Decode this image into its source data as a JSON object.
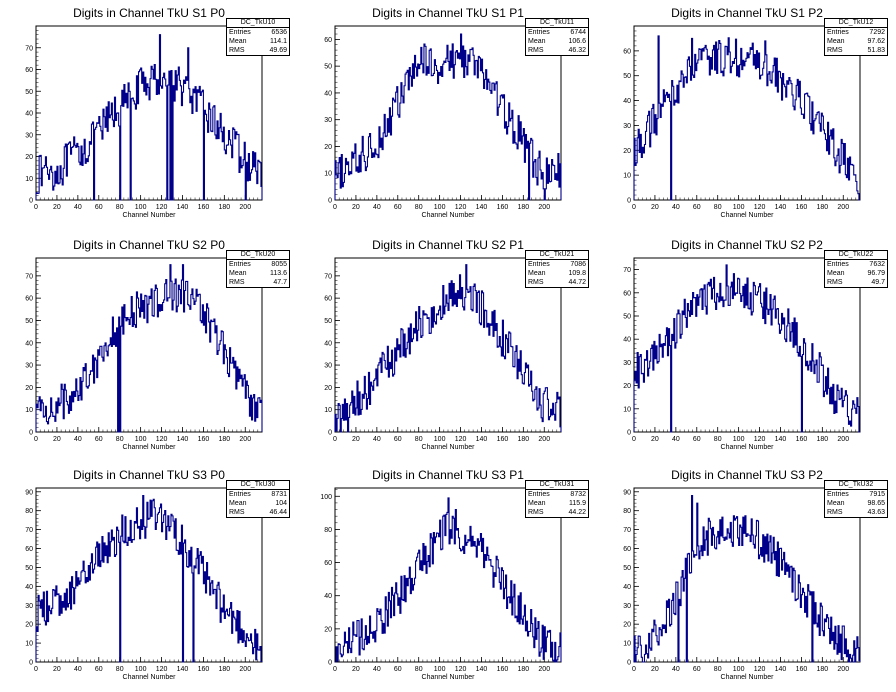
{
  "chart_data": [
    {
      "type": "histogram",
      "name": "DC_TkU10",
      "title": "Digits in Channel TkU S1 P0",
      "xlabel": "Channel Number",
      "xlim": [
        0,
        216
      ],
      "ylim": [
        0,
        80
      ],
      "yticks": [
        0,
        10,
        20,
        30,
        40,
        50,
        60,
        70
      ],
      "xticks": [
        0,
        20,
        40,
        60,
        80,
        100,
        120,
        140,
        160,
        180,
        200
      ],
      "stats": {
        "entries": "6536",
        "mean": "114.1",
        "rms": "49.69"
      },
      "profile": [
        [
          0,
          10
        ],
        [
          10,
          15
        ],
        [
          20,
          12
        ],
        [
          30,
          18
        ],
        [
          40,
          22
        ],
        [
          50,
          25
        ],
        [
          60,
          30
        ],
        [
          70,
          38
        ],
        [
          80,
          42
        ],
        [
          90,
          48
        ],
        [
          100,
          52
        ],
        [
          110,
          55
        ],
        [
          120,
          56
        ],
        [
          130,
          55
        ],
        [
          140,
          52
        ],
        [
          150,
          47
        ],
        [
          160,
          42
        ],
        [
          170,
          36
        ],
        [
          180,
          30
        ],
        [
          190,
          24
        ],
        [
          200,
          18
        ],
        [
          210,
          14
        ],
        [
          216,
          12
        ]
      ],
      "spikes": [
        [
          118,
          76
        ],
        [
          125,
          60
        ],
        [
          145,
          70
        ]
      ],
      "dips": [
        55,
        80,
        90,
        125,
        128,
        130,
        160,
        200
      ]
    },
    {
      "type": "histogram",
      "name": "DC_TkU11",
      "title": "Digits in Channel TkU S1 P1",
      "xlabel": "Channel Number",
      "xlim": [
        0,
        216
      ],
      "ylim": [
        0,
        65
      ],
      "yticks": [
        0,
        10,
        20,
        30,
        40,
        50,
        60
      ],
      "xticks": [
        0,
        20,
        40,
        60,
        80,
        100,
        120,
        140,
        160,
        180,
        200
      ],
      "stats": {
        "entries": "6744",
        "mean": "106.6",
        "rms": "46.32"
      },
      "profile": [
        [
          0,
          8
        ],
        [
          10,
          12
        ],
        [
          20,
          14
        ],
        [
          30,
          18
        ],
        [
          40,
          22
        ],
        [
          50,
          28
        ],
        [
          60,
          36
        ],
        [
          70,
          44
        ],
        [
          80,
          50
        ],
        [
          90,
          52
        ],
        [
          100,
          50
        ],
        [
          110,
          52
        ],
        [
          120,
          53
        ],
        [
          130,
          52
        ],
        [
          140,
          48
        ],
        [
          150,
          42
        ],
        [
          160,
          34
        ],
        [
          170,
          28
        ],
        [
          180,
          22
        ],
        [
          190,
          14
        ],
        [
          200,
          10
        ],
        [
          210,
          10
        ],
        [
          216,
          12
        ]
      ],
      "spikes": [
        [
          120,
          62
        ],
        [
          82,
          57
        ]
      ],
      "dips": [
        185,
        200
      ]
    },
    {
      "type": "histogram",
      "name": "DC_TkU12",
      "title": "Digits in Channel TkU S1 P2",
      "xlabel": "Channel Number",
      "xlim": [
        0,
        216
      ],
      "ylim": [
        0,
        70
      ],
      "yticks": [
        0,
        10,
        20,
        30,
        40,
        50,
        60
      ],
      "xticks": [
        0,
        20,
        40,
        60,
        80,
        100,
        120,
        140,
        160,
        180,
        200
      ],
      "stats": {
        "entries": "7292",
        "mean": "97.62",
        "rms": "51.83"
      },
      "profile": [
        [
          0,
          20
        ],
        [
          10,
          25
        ],
        [
          20,
          32
        ],
        [
          30,
          38
        ],
        [
          40,
          45
        ],
        [
          50,
          50
        ],
        [
          60,
          54
        ],
        [
          70,
          56
        ],
        [
          80,
          57
        ],
        [
          90,
          58
        ],
        [
          100,
          57
        ],
        [
          110,
          56
        ],
        [
          120,
          55
        ],
        [
          130,
          52
        ],
        [
          140,
          48
        ],
        [
          150,
          44
        ],
        [
          160,
          40
        ],
        [
          170,
          34
        ],
        [
          180,
          28
        ],
        [
          190,
          22
        ],
        [
          200,
          16
        ],
        [
          210,
          10
        ],
        [
          216,
          5
        ]
      ],
      "spikes": [
        [
          23,
          66
        ],
        [
          125,
          64
        ],
        [
          55,
          65
        ]
      ],
      "dips": [
        35,
        215
      ]
    },
    {
      "type": "histogram",
      "name": "DC_TkU20",
      "title": "Digits in Channel TkU S2 P0",
      "xlabel": "Channel Number",
      "xlim": [
        0,
        216
      ],
      "ylim": [
        0,
        78
      ],
      "yticks": [
        0,
        10,
        20,
        30,
        40,
        50,
        60,
        70
      ],
      "xticks": [
        0,
        20,
        40,
        60,
        80,
        100,
        120,
        140,
        160,
        180,
        200
      ],
      "stats": {
        "entries": "8055",
        "mean": "113.6",
        "rms": "47.7"
      },
      "profile": [
        [
          0,
          10
        ],
        [
          10,
          10
        ],
        [
          20,
          12
        ],
        [
          30,
          15
        ],
        [
          40,
          20
        ],
        [
          50,
          26
        ],
        [
          60,
          34
        ],
        [
          70,
          42
        ],
        [
          80,
          48
        ],
        [
          90,
          52
        ],
        [
          100,
          56
        ],
        [
          110,
          58
        ],
        [
          120,
          60
        ],
        [
          130,
          62
        ],
        [
          140,
          62
        ],
        [
          150,
          58
        ],
        [
          160,
          54
        ],
        [
          170,
          46
        ],
        [
          180,
          36
        ],
        [
          190,
          28
        ],
        [
          200,
          18
        ],
        [
          210,
          10
        ],
        [
          216,
          8
        ]
      ],
      "spikes": [
        [
          128,
          75
        ],
        [
          140,
          75
        ]
      ],
      "dips": [
        78,
        80
      ]
    },
    {
      "type": "histogram",
      "name": "DC_TkU21",
      "title": "Digits in Channel TkU S2 P1",
      "xlabel": "Channel Number",
      "xlim": [
        0,
        216
      ],
      "ylim": [
        0,
        78
      ],
      "yticks": [
        0,
        10,
        20,
        30,
        40,
        50,
        60,
        70
      ],
      "xticks": [
        0,
        20,
        40,
        60,
        80,
        100,
        120,
        140,
        160,
        180,
        200
      ],
      "stats": {
        "entries": "7086",
        "mean": "109.8",
        "rms": "44.72"
      },
      "profile": [
        [
          0,
          8
        ],
        [
          10,
          10
        ],
        [
          20,
          14
        ],
        [
          30,
          18
        ],
        [
          40,
          24
        ],
        [
          50,
          30
        ],
        [
          60,
          36
        ],
        [
          70,
          42
        ],
        [
          80,
          48
        ],
        [
          90,
          52
        ],
        [
          100,
          56
        ],
        [
          110,
          60
        ],
        [
          120,
          62
        ],
        [
          130,
          60
        ],
        [
          140,
          56
        ],
        [
          150,
          50
        ],
        [
          160,
          42
        ],
        [
          170,
          34
        ],
        [
          180,
          26
        ],
        [
          190,
          18
        ],
        [
          200,
          12
        ],
        [
          210,
          10
        ],
        [
          216,
          8
        ]
      ],
      "spikes": [
        [
          125,
          75
        ]
      ],
      "dips": [
        5,
        12
      ]
    },
    {
      "type": "histogram",
      "name": "DC_TkU22",
      "title": "Digits in Channel TkU S2 P2",
      "xlabel": "Channel Number",
      "xlim": [
        0,
        216
      ],
      "ylim": [
        0,
        75
      ],
      "yticks": [
        0,
        10,
        20,
        30,
        40,
        50,
        60,
        70
      ],
      "xticks": [
        0,
        20,
        40,
        60,
        80,
        100,
        120,
        140,
        160,
        180,
        200
      ],
      "stats": {
        "entries": "7632",
        "mean": "96.79",
        "rms": "49.7"
      },
      "profile": [
        [
          0,
          25
        ],
        [
          10,
          28
        ],
        [
          20,
          32
        ],
        [
          30,
          38
        ],
        [
          40,
          44
        ],
        [
          50,
          50
        ],
        [
          60,
          54
        ],
        [
          70,
          58
        ],
        [
          80,
          60
        ],
        [
          90,
          62
        ],
        [
          100,
          60
        ],
        [
          110,
          58
        ],
        [
          120,
          56
        ],
        [
          130,
          54
        ],
        [
          140,
          50
        ],
        [
          150,
          44
        ],
        [
          160,
          38
        ],
        [
          170,
          32
        ],
        [
          180,
          24
        ],
        [
          190,
          16
        ],
        [
          200,
          12
        ],
        [
          210,
          8
        ],
        [
          216,
          6
        ]
      ],
      "spikes": [
        [
          88,
          72
        ],
        [
          100,
          66
        ]
      ],
      "dips": [
        160,
        35
      ]
    },
    {
      "type": "histogram",
      "name": "DC_TkU30",
      "title": "Digits in Channel TkU S3 P0",
      "xlabel": "Channel Number",
      "xlim": [
        0,
        216
      ],
      "ylim": [
        0,
        92
      ],
      "yticks": [
        0,
        10,
        20,
        30,
        40,
        50,
        60,
        70,
        80,
        90
      ],
      "xticks": [
        0,
        20,
        40,
        60,
        80,
        100,
        120,
        140,
        160,
        180,
        200
      ],
      "stats": {
        "entries": "8731",
        "mean": "104",
        "rms": "46.44"
      },
      "profile": [
        [
          0,
          25
        ],
        [
          10,
          28
        ],
        [
          20,
          32
        ],
        [
          30,
          36
        ],
        [
          40,
          42
        ],
        [
          50,
          48
        ],
        [
          60,
          56
        ],
        [
          70,
          62
        ],
        [
          80,
          68
        ],
        [
          90,
          72
        ],
        [
          100,
          74
        ],
        [
          110,
          76
        ],
        [
          120,
          74
        ],
        [
          130,
          70
        ],
        [
          140,
          64
        ],
        [
          150,
          56
        ],
        [
          160,
          46
        ],
        [
          170,
          36
        ],
        [
          180,
          28
        ],
        [
          190,
          22
        ],
        [
          200,
          16
        ],
        [
          210,
          8
        ],
        [
          216,
          3
        ]
      ],
      "spikes": [
        [
          102,
          88
        ],
        [
          112,
          86
        ]
      ],
      "dips": [
        80,
        140,
        150
      ]
    },
    {
      "type": "histogram",
      "name": "DC_TkU31",
      "title": "Digits in Channel TkU S3 P1",
      "xlabel": "Channel Number",
      "xlim": [
        0,
        216
      ],
      "ylim": [
        0,
        105
      ],
      "yticks": [
        0,
        20,
        40,
        60,
        80,
        100
      ],
      "xticks": [
        0,
        20,
        40,
        60,
        80,
        100,
        120,
        140,
        160,
        180,
        200
      ],
      "stats": {
        "entries": "8732",
        "mean": "115.9",
        "rms": "44.22"
      },
      "profile": [
        [
          0,
          8
        ],
        [
          10,
          10
        ],
        [
          20,
          14
        ],
        [
          30,
          18
        ],
        [
          40,
          24
        ],
        [
          50,
          30
        ],
        [
          60,
          38
        ],
        [
          70,
          46
        ],
        [
          80,
          56
        ],
        [
          90,
          66
        ],
        [
          100,
          76
        ],
        [
          110,
          80
        ],
        [
          120,
          78
        ],
        [
          130,
          72
        ],
        [
          140,
          66
        ],
        [
          150,
          58
        ],
        [
          160,
          48
        ],
        [
          170,
          38
        ],
        [
          180,
          28
        ],
        [
          190,
          18
        ],
        [
          200,
          12
        ],
        [
          210,
          10
        ],
        [
          216,
          8
        ]
      ],
      "spikes": [
        [
          108,
          99
        ],
        [
          115,
          92
        ]
      ],
      "dips": []
    },
    {
      "type": "histogram",
      "name": "DC_TkU32",
      "title": "Digits in Channel TkU S3 P2",
      "xlabel": "Channel Number",
      "xlim": [
        0,
        216
      ],
      "ylim": [
        0,
        92
      ],
      "yticks": [
        0,
        10,
        20,
        30,
        40,
        50,
        60,
        70,
        80,
        90
      ],
      "xticks": [
        0,
        20,
        40,
        60,
        80,
        100,
        120,
        140,
        160,
        180,
        200
      ],
      "stats": {
        "entries": "7915",
        "mean": "98.65",
        "rms": "43.63"
      },
      "profile": [
        [
          0,
          6
        ],
        [
          10,
          10
        ],
        [
          20,
          16
        ],
        [
          30,
          24
        ],
        [
          40,
          34
        ],
        [
          50,
          46
        ],
        [
          60,
          58
        ],
        [
          70,
          66
        ],
        [
          80,
          70
        ],
        [
          90,
          72
        ],
        [
          100,
          70
        ],
        [
          110,
          68
        ],
        [
          120,
          64
        ],
        [
          130,
          58
        ],
        [
          140,
          52
        ],
        [
          150,
          44
        ],
        [
          160,
          36
        ],
        [
          170,
          28
        ],
        [
          180,
          22
        ],
        [
          190,
          16
        ],
        [
          200,
          10
        ],
        [
          210,
          6
        ],
        [
          216,
          4
        ]
      ],
      "spikes": [
        [
          55,
          88
        ],
        [
          60,
          84
        ]
      ],
      "dips": [
        42,
        50,
        170
      ]
    }
  ],
  "stat_labels": {
    "entries": "Entries",
    "mean": "Mean",
    "rms": "RMS"
  },
  "colors": {
    "line": "#00008b",
    "axis": "#000000"
  }
}
